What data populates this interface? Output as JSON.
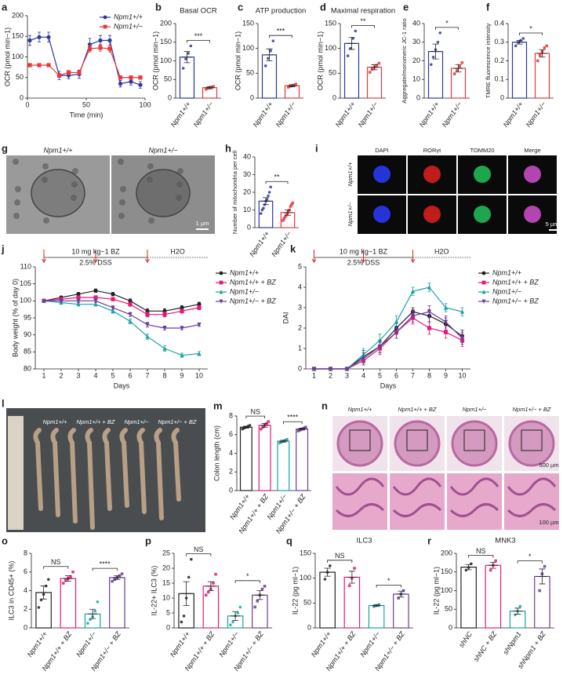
{
  "chart_data": [
    {
      "panel": "a",
      "type": "line",
      "ylabel": "OCR (pmol min−1)",
      "xlabel": "Time (min)",
      "xlim": [
        0,
        100
      ],
      "xticks": [
        0,
        50,
        100
      ],
      "ylim": [
        0,
        200
      ],
      "yticks": [
        0,
        50,
        100,
        150,
        200
      ],
      "legend": "top-right",
      "series": [
        {
          "name": "Npm1+/+",
          "color": "#2b3a9a",
          "marker": "circle",
          "x": [
            2,
            10,
            18,
            27,
            35,
            44,
            53,
            62,
            70,
            79,
            88,
            96
          ],
          "values": [
            140,
            148,
            148,
            55,
            55,
            58,
            130,
            140,
            140,
            35,
            40,
            32
          ],
          "errors": [
            12,
            12,
            12,
            10,
            8,
            10,
            15,
            12,
            12,
            8,
            8,
            8
          ]
        },
        {
          "name": "Npm1+/−",
          "color": "#e8383d",
          "marker": "square",
          "x": [
            2,
            10,
            18,
            27,
            35,
            44,
            53,
            62,
            70,
            79,
            88,
            96
          ],
          "values": [
            80,
            80,
            80,
            55,
            62,
            62,
            120,
            122,
            120,
            50,
            50,
            50
          ],
          "errors": [
            4,
            4,
            4,
            5,
            5,
            5,
            8,
            8,
            8,
            4,
            4,
            4
          ]
        }
      ]
    },
    {
      "panel": "b",
      "type": "bar",
      "title": "Basal OCR",
      "ylabel": "OCR (pmol min−1)",
      "categories": [
        "Npm1+/+",
        "Npm1+/−"
      ],
      "colors": [
        "#2b3a9a",
        "#e8383d"
      ],
      "values": [
        110,
        28
      ],
      "errors": [
        15,
        3
      ],
      "points": [
        [
          80,
          105,
          120,
          140
        ],
        [
          24,
          27,
          29,
          31
        ]
      ],
      "significance": [
        "***"
      ],
      "ylim": [
        0,
        200
      ],
      "yticks": [
        0,
        50,
        100,
        150,
        200
      ]
    },
    {
      "panel": "c",
      "type": "bar",
      "title": "ATP production",
      "ylabel": "OCR (pmol min−1)",
      "categories": [
        "Npm1+/+",
        "Npm1+/−"
      ],
      "colors": [
        "#2b3a9a",
        "#e8383d"
      ],
      "values": [
        87,
        25
      ],
      "errors": [
        12,
        2
      ],
      "points": [
        [
          65,
          80,
          95,
          115
        ],
        [
          22,
          24,
          26,
          28
        ]
      ],
      "significance": [
        "***"
      ],
      "ylim": [
        0,
        150
      ],
      "yticks": [
        0,
        50,
        100,
        150
      ]
    },
    {
      "panel": "d",
      "type": "bar",
      "title": "Maximal respiration",
      "ylabel": "OCR (pmol min−1)",
      "categories": [
        "Npm1+/+",
        "Npm1+/−"
      ],
      "colors": [
        "#2b3a9a",
        "#e8383d"
      ],
      "values": [
        110,
        62
      ],
      "errors": [
        12,
        5
      ],
      "points": [
        [
          85,
          100,
          120,
          135
        ],
        [
          52,
          58,
          62,
          66,
          70
        ]
      ],
      "significance": [
        "**"
      ],
      "ylim": [
        0,
        150
      ],
      "yticks": [
        0,
        50,
        100,
        150
      ]
    },
    {
      "panel": "e",
      "type": "bar",
      "ylabel": "Aggregate/monomeric JC-1 ratio",
      "categories": [
        "Npm1+/+",
        "Npm1+/−"
      ],
      "colors": [
        "#2b3a9a",
        "#e8383d"
      ],
      "values": [
        25,
        16
      ],
      "errors": [
        4,
        2
      ],
      "points": [
        [
          18,
          22,
          26,
          30,
          35
        ],
        [
          13,
          15,
          17,
          19
        ]
      ],
      "significance": [
        "*"
      ],
      "ylim": [
        0,
        40
      ],
      "yticks": [
        0,
        10,
        20,
        30,
        40
      ]
    },
    {
      "panel": "f",
      "type": "bar",
      "ylabel": "TMRE fluorescence intensity",
      "categories": [
        "Npm1+/+",
        "Npm1+/−"
      ],
      "colors": [
        "#2b3a9a",
        "#e8383d"
      ],
      "values": [
        0.3,
        0.24
      ],
      "errors": [
        0.01,
        0.02
      ],
      "points": [
        [
          0.28,
          0.3,
          0.31,
          0.32
        ],
        [
          0.2,
          0.23,
          0.25,
          0.27,
          0.28
        ]
      ],
      "significance": [
        "*"
      ],
      "ylim": [
        0,
        0.4
      ],
      "yticks": [
        0,
        0.1,
        0.2,
        0.3,
        0.4
      ]
    },
    {
      "panel": "h",
      "type": "bar",
      "ylabel": "Number of mitochondria per cell",
      "categories": [
        "Npm1+/+",
        "Npm1+/−"
      ],
      "colors": [
        "#2b3a9a",
        "#e8383d"
      ],
      "values": [
        15,
        8.5
      ],
      "errors": [
        2,
        1.5
      ],
      "points": [
        [
          8,
          10,
          11,
          13,
          15,
          16,
          18,
          20,
          23
        ],
        [
          4,
          5,
          6,
          7,
          8,
          9,
          10,
          12,
          13,
          14
        ]
      ],
      "significance": [
        "**"
      ],
      "ylim": [
        0,
        40
      ],
      "yticks": [
        0,
        10,
        20,
        30,
        40
      ]
    },
    {
      "panel": "j",
      "type": "line",
      "ylabel": "Body weight (% of day 0)",
      "xlabel": "Days",
      "xlim": [
        0.5,
        10.5
      ],
      "xticks": [
        1,
        2,
        3,
        4,
        5,
        6,
        7,
        8,
        9,
        10
      ],
      "ylim": [
        80,
        110
      ],
      "yticks": [
        80,
        85,
        90,
        95,
        100,
        105,
        110
      ],
      "legend": "right",
      "annotations": [
        "10 mg kg−1 BZ",
        "2.5% DSS",
        "H2O"
      ],
      "treatment_days": [
        1,
        4,
        7
      ],
      "x": [
        1,
        2,
        3,
        4,
        5,
        6,
        7,
        8,
        9,
        10
      ],
      "series": [
        {
          "name": "Npm1+/+",
          "color": "#222222",
          "marker": "circle",
          "values": [
            100,
            101,
            102,
            103,
            102,
            100,
            97,
            97,
            98,
            99
          ],
          "errors": [
            0.3,
            0.4,
            0.5,
            0.5,
            0.5,
            0.6,
            0.7,
            0.7,
            0.6,
            0.6
          ]
        },
        {
          "name": "Npm1+/+ + BZ",
          "color": "#e6197a",
          "marker": "square",
          "values": [
            100,
            100.5,
            101,
            101,
            100.5,
            99,
            96,
            96,
            97,
            98
          ],
          "errors": [
            0.3,
            0.4,
            0.4,
            0.5,
            0.5,
            0.6,
            0.7,
            0.7,
            0.6,
            0.6
          ]
        },
        {
          "name": "Npm1+/−",
          "color": "#1aa3a3",
          "marker": "triangle",
          "values": [
            100,
            99.5,
            99,
            99,
            97,
            94,
            89.5,
            86,
            84,
            84.5
          ],
          "errors": [
            0.3,
            0.4,
            0.4,
            0.5,
            0.6,
            0.7,
            0.8,
            0.8,
            0.6,
            0.6
          ]
        },
        {
          "name": "Npm1+/− + BZ",
          "color": "#6a3d9a",
          "marker": "triangle-down",
          "values": [
            100,
            100,
            100,
            100,
            98,
            96,
            93,
            92,
            92,
            93
          ],
          "errors": [
            0.3,
            0.4,
            0.4,
            0.5,
            0.5,
            0.6,
            0.7,
            0.6,
            0.5,
            0.5
          ]
        }
      ]
    },
    {
      "panel": "k",
      "type": "line",
      "ylabel": "DAI",
      "xlabel": "Days",
      "xlim": [
        0.5,
        10.5
      ],
      "xticks": [
        1,
        2,
        3,
        4,
        5,
        6,
        7,
        8,
        9,
        10
      ],
      "ylim": [
        0,
        5
      ],
      "yticks": [
        0,
        1,
        2,
        3,
        4,
        5
      ],
      "legend": "right",
      "annotations": [
        "10 mg kg−1 BZ",
        "2.5% DSS",
        "H2O"
      ],
      "treatment_days": [
        1,
        4,
        7
      ],
      "x": [
        1,
        2,
        3,
        4,
        5,
        6,
        7,
        8,
        9,
        10
      ],
      "series": [
        {
          "name": "Npm1+/+",
          "color": "#222222",
          "marker": "circle",
          "values": [
            0,
            0,
            0,
            0.6,
            1.1,
            2,
            2.8,
            2.6,
            2.2,
            1.6
          ],
          "errors": [
            0,
            0,
            0,
            0.3,
            0.3,
            0.3,
            0.2,
            0.3,
            0.3,
            0.3
          ]
        },
        {
          "name": "Npm1+/+ + BZ",
          "color": "#e6197a",
          "marker": "square",
          "values": [
            0,
            0,
            0,
            0.4,
            1,
            1.8,
            2.5,
            2,
            1.8,
            1.4
          ],
          "errors": [
            0,
            0,
            0,
            0.2,
            0.3,
            0.3,
            0.3,
            0.3,
            0.3,
            0.3
          ]
        },
        {
          "name": "Npm1+/−",
          "color": "#1aa3a3",
          "marker": "triangle",
          "values": [
            0,
            0,
            0,
            0.7,
            1.4,
            2.3,
            3.8,
            4,
            3,
            2.8
          ],
          "errors": [
            0,
            0,
            0,
            0.3,
            0.3,
            0.3,
            0.2,
            0.2,
            0.2,
            0.2
          ]
        },
        {
          "name": "Npm1+/− + BZ",
          "color": "#6a3d9a",
          "marker": "triangle-down",
          "values": [
            0,
            0,
            0,
            0.5,
            1.1,
            1.8,
            2.6,
            2.8,
            2.3,
            1.5
          ],
          "errors": [
            0,
            0,
            0,
            0.3,
            0.3,
            0.3,
            0.3,
            0.3,
            0.3,
            0.3
          ]
        }
      ]
    },
    {
      "panel": "m",
      "type": "bar",
      "ylabel": "Colon length (cm)",
      "categories": [
        "Npm1+/+",
        "Npm1+/+ + BZ",
        "Npm1+/−",
        "Npm1+/− + BZ"
      ],
      "colors": [
        "#222222",
        "#e6197a",
        "#1aa3a3",
        "#6a3d9a"
      ],
      "values": [
        6.8,
        7,
        5.3,
        6.6
      ],
      "errors": [
        0.1,
        0.2,
        0.1,
        0.1
      ],
      "points": [
        [
          6.6,
          6.7,
          6.8,
          6.9,
          7
        ],
        [
          6.6,
          6.8,
          7,
          7.2,
          7.4
        ],
        [
          5.1,
          5.2,
          5.3,
          5.4,
          5.5
        ],
        [
          6.4,
          6.5,
          6.6,
          6.7,
          6.8
        ]
      ],
      "significance": [
        "NS",
        "****"
      ],
      "ylim": [
        0,
        8
      ],
      "yticks": [
        0,
        2,
        4,
        6,
        8
      ]
    },
    {
      "panel": "o",
      "type": "bar",
      "ylabel": "ILC3 in CD45+ (%)",
      "categories": [
        "Npm1+/+",
        "Npm1+/+ + BZ",
        "Npm1+/−",
        "Npm1+/− + BZ"
      ],
      "colors": [
        "#222222",
        "#e6197a",
        "#1aa3a3",
        "#6a3d9a"
      ],
      "values": [
        3.8,
        5.3,
        1.5,
        5.4
      ],
      "errors": [
        0.7,
        0.3,
        0.5,
        0.2
      ],
      "points": [
        [
          2.2,
          3,
          3.6,
          4.5,
          5.2
        ],
        [
          4.8,
          5.1,
          5.3,
          5.5,
          6
        ],
        [
          0.5,
          0.9,
          1.2,
          1.8,
          2.8
        ],
        [
          5,
          5.2,
          5.4,
          5.6,
          5.8
        ]
      ],
      "significance": [
        "NS",
        "****"
      ],
      "ylim": [
        0,
        8
      ],
      "yticks": [
        0,
        2,
        4,
        6,
        8
      ]
    },
    {
      "panel": "p",
      "type": "bar",
      "ylabel": "IL-22+ ILC3 (%)",
      "categories": [
        "Npm1+/+",
        "Npm1+/+ + BZ",
        "Npm1+/−",
        "Npm1+/− + BZ"
      ],
      "colors": [
        "#222222",
        "#e6197a",
        "#1aa3a3",
        "#6a3d9a"
      ],
      "values": [
        11.5,
        14,
        4,
        11
      ],
      "errors": [
        4,
        1.5,
        1.5,
        1.5
      ],
      "points": [
        [
          2,
          4,
          10,
          17,
          23
        ],
        [
          11,
          12,
          13,
          15,
          18
        ],
        [
          1,
          2,
          4,
          5,
          7
        ],
        [
          7,
          9,
          11,
          13,
          14
        ]
      ],
      "significance": [
        "NS",
        "*"
      ],
      "ylim": [
        0,
        25
      ],
      "yticks": [
        0,
        5,
        10,
        15,
        20,
        25
      ]
    },
    {
      "panel": "q",
      "type": "bar",
      "title": "ILC3",
      "ylabel": "IL-22 (pg ml−1)",
      "categories": [
        "Npm1+/+",
        "Npm1+/+ + BZ",
        "Npm1+/−",
        "Npm1+/− + BZ"
      ],
      "colors": [
        "#222222",
        "#e6197a",
        "#1aa3a3",
        "#6a3d9a"
      ],
      "values": [
        112,
        102,
        45,
        68
      ],
      "errors": [
        8,
        12,
        2,
        6
      ],
      "points": [
        [
          98,
          112,
          125
        ],
        [
          85,
          100,
          120
        ],
        [
          43,
          45,
          47
        ],
        [
          60,
          68,
          75
        ]
      ],
      "significance": [
        "NS",
        "*"
      ],
      "ylim": [
        0,
        150
      ],
      "yticks": [
        0,
        50,
        100,
        150
      ]
    },
    {
      "panel": "r",
      "type": "bar",
      "title": "MNK3",
      "ylabel": "IL-22 (pg ml−1)",
      "categories": [
        "shNC",
        "shNC + BZ",
        "shNpm1",
        "shNpm1 + BZ"
      ],
      "colors": [
        "#222222",
        "#e6197a",
        "#1aa3a3",
        "#6a3d9a"
      ],
      "values": [
        163,
        168,
        45,
        138
      ],
      "errors": [
        7,
        8,
        8,
        20
      ],
      "points": [
        [
          155,
          162,
          172
        ],
        [
          155,
          168,
          180
        ],
        [
          35,
          45,
          58
        ],
        [
          100,
          145,
          165
        ]
      ],
      "significance": [
        "NS",
        "*"
      ],
      "ylim": [
        0,
        200
      ],
      "yticks": [
        0,
        50,
        100,
        150,
        200
      ]
    }
  ],
  "images": [
    {
      "panel": "g",
      "labels": [
        "Npm1+/+",
        "Npm1+/−"
      ],
      "scale_bar": "1 µm"
    },
    {
      "panel": "i",
      "columns": [
        "DAPI",
        "RORγt",
        "TOMM20",
        "Merge"
      ],
      "rows": [
        "Npm1+/+",
        "Npm1+/−"
      ],
      "scale_bar": "5 µm"
    },
    {
      "panel": "l",
      "labels": [
        "Npm1+/+",
        "Npm1+/+ + BZ",
        "Npm1+/−",
        "Npm1+/− + BZ"
      ]
    },
    {
      "panel": "n",
      "labels": [
        "Npm1+/+",
        "Npm1+/+ + BZ",
        "Npm1+/−",
        "Npm1+/− + BZ"
      ],
      "scale_bars": [
        "500 µm",
        "100 µm"
      ]
    }
  ]
}
